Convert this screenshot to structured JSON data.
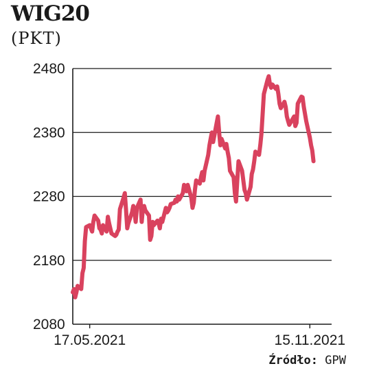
{
  "chart_data": {
    "type": "line",
    "title": "WIG20",
    "subtitle": "(PKT)",
    "source_label": "Źródło:",
    "source_value": "GPW",
    "line_color": "#d9425e",
    "ylim": [
      2080,
      2480
    ],
    "yticks": [
      {
        "label": "2480",
        "value": 2480
      },
      {
        "label": "2380",
        "value": 2380
      },
      {
        "label": "2280",
        "value": 2280
      },
      {
        "label": "2180",
        "value": 2180
      },
      {
        "label": "2080",
        "value": 2080
      }
    ],
    "xticks": [
      {
        "label": "17.05.2021",
        "value": "2021-05-17"
      },
      {
        "label": "15.11.2021",
        "value": "2021-11-15"
      }
    ],
    "xlim": [
      "2021-05-03",
      "2021-12-03"
    ],
    "grid": "horizontal",
    "series": [
      {
        "points": [
          [
            "2021-05-03",
            2130
          ],
          [
            "2021-05-04",
            2135
          ],
          [
            "2021-05-05",
            2122
          ],
          [
            "2021-05-06",
            2130
          ],
          [
            "2021-05-07",
            2140
          ],
          [
            "2021-05-10",
            2135
          ],
          [
            "2021-05-11",
            2160
          ],
          [
            "2021-05-12",
            2168
          ],
          [
            "2021-05-13",
            2210
          ],
          [
            "2021-05-14",
            2232
          ],
          [
            "2021-05-17",
            2235
          ],
          [
            "2021-05-18",
            2230
          ],
          [
            "2021-05-19",
            2225
          ],
          [
            "2021-05-20",
            2240
          ],
          [
            "2021-05-21",
            2250
          ],
          [
            "2021-05-24",
            2242
          ],
          [
            "2021-05-25",
            2230
          ],
          [
            "2021-05-26",
            2228
          ],
          [
            "2021-05-27",
            2222
          ],
          [
            "2021-05-28",
            2235
          ],
          [
            "2021-05-31",
            2225
          ],
          [
            "2021-06-01",
            2248
          ],
          [
            "2021-06-02",
            2238
          ],
          [
            "2021-06-04",
            2222
          ],
          [
            "2021-06-07",
            2218
          ],
          [
            "2021-06-08",
            2220
          ],
          [
            "2021-06-09",
            2225
          ],
          [
            "2021-06-10",
            2228
          ],
          [
            "2021-06-11",
            2260
          ],
          [
            "2021-06-14",
            2278
          ],
          [
            "2021-06-15",
            2285
          ],
          [
            "2021-06-16",
            2260
          ],
          [
            "2021-06-17",
            2230
          ],
          [
            "2021-06-18",
            2238
          ],
          [
            "2021-06-21",
            2255
          ],
          [
            "2021-06-22",
            2265
          ],
          [
            "2021-06-23",
            2258
          ],
          [
            "2021-06-24",
            2240
          ],
          [
            "2021-06-25",
            2262
          ],
          [
            "2021-06-28",
            2275
          ],
          [
            "2021-06-29",
            2240
          ],
          [
            "2021-06-30",
            2262
          ],
          [
            "2021-07-01",
            2265
          ],
          [
            "2021-07-02",
            2258
          ],
          [
            "2021-07-05",
            2250
          ],
          [
            "2021-07-06",
            2212
          ],
          [
            "2021-07-07",
            2218
          ],
          [
            "2021-07-08",
            2240
          ],
          [
            "2021-07-09",
            2235
          ],
          [
            "2021-07-12",
            2242
          ],
          [
            "2021-07-13",
            2238
          ],
          [
            "2021-07-14",
            2230
          ],
          [
            "2021-07-15",
            2245
          ],
          [
            "2021-07-16",
            2240
          ],
          [
            "2021-07-19",
            2262
          ],
          [
            "2021-07-20",
            2255
          ],
          [
            "2021-07-21",
            2258
          ],
          [
            "2021-07-22",
            2262
          ],
          [
            "2021-07-23",
            2268
          ],
          [
            "2021-07-26",
            2270
          ],
          [
            "2021-07-27",
            2275
          ],
          [
            "2021-07-28",
            2272
          ],
          [
            "2021-07-29",
            2280
          ],
          [
            "2021-07-30",
            2275
          ],
          [
            "2021-08-02",
            2285
          ],
          [
            "2021-08-03",
            2298
          ],
          [
            "2021-08-04",
            2295
          ],
          [
            "2021-08-05",
            2288
          ],
          [
            "2021-08-06",
            2298
          ],
          [
            "2021-08-09",
            2278
          ],
          [
            "2021-08-10",
            2262
          ],
          [
            "2021-08-11",
            2270
          ],
          [
            "2021-08-12",
            2290
          ],
          [
            "2021-08-13",
            2305
          ],
          [
            "2021-08-16",
            2300
          ],
          [
            "2021-08-17",
            2310
          ],
          [
            "2021-08-18",
            2318
          ],
          [
            "2021-08-19",
            2305
          ],
          [
            "2021-08-20",
            2320
          ],
          [
            "2021-08-23",
            2345
          ],
          [
            "2021-08-24",
            2360
          ],
          [
            "2021-08-25",
            2370
          ],
          [
            "2021-08-26",
            2380
          ],
          [
            "2021-08-27",
            2365
          ],
          [
            "2021-08-30",
            2395
          ],
          [
            "2021-08-31",
            2405
          ],
          [
            "2021-09-01",
            2380
          ],
          [
            "2021-09-02",
            2360
          ],
          [
            "2021-09-03",
            2370
          ],
          [
            "2021-09-06",
            2355
          ],
          [
            "2021-09-07",
            2362
          ],
          [
            "2021-09-08",
            2350
          ],
          [
            "2021-09-09",
            2340
          ],
          [
            "2021-09-10",
            2320
          ],
          [
            "2021-09-13",
            2310
          ],
          [
            "2021-09-14",
            2285
          ],
          [
            "2021-09-15",
            2272
          ],
          [
            "2021-09-16",
            2305
          ],
          [
            "2021-09-17",
            2335
          ],
          [
            "2021-09-20",
            2320
          ],
          [
            "2021-09-21",
            2305
          ],
          [
            "2021-09-22",
            2290
          ],
          [
            "2021-09-23",
            2285
          ],
          [
            "2021-09-24",
            2275
          ],
          [
            "2021-09-27",
            2295
          ],
          [
            "2021-09-28",
            2315
          ],
          [
            "2021-09-29",
            2322
          ],
          [
            "2021-09-30",
            2335
          ],
          [
            "2021-10-01",
            2350
          ],
          [
            "2021-10-04",
            2345
          ],
          [
            "2021-10-05",
            2360
          ],
          [
            "2021-10-06",
            2378
          ],
          [
            "2021-10-07",
            2410
          ],
          [
            "2021-10-08",
            2440
          ],
          [
            "2021-10-11",
            2462
          ],
          [
            "2021-10-12",
            2468
          ],
          [
            "2021-10-13",
            2455
          ],
          [
            "2021-10-14",
            2450
          ],
          [
            "2021-10-15",
            2455
          ],
          [
            "2021-10-18",
            2448
          ],
          [
            "2021-10-19",
            2452
          ],
          [
            "2021-10-20",
            2440
          ],
          [
            "2021-10-21",
            2425
          ],
          [
            "2021-10-22",
            2418
          ],
          [
            "2021-10-25",
            2428
          ],
          [
            "2021-10-26",
            2420
          ],
          [
            "2021-10-27",
            2405
          ],
          [
            "2021-10-28",
            2398
          ],
          [
            "2021-10-29",
            2392
          ],
          [
            "2021-11-02",
            2405
          ],
          [
            "2021-11-03",
            2390
          ],
          [
            "2021-11-04",
            2395
          ],
          [
            "2021-11-05",
            2425
          ],
          [
            "2021-11-08",
            2436
          ],
          [
            "2021-11-09",
            2435
          ],
          [
            "2021-11-10",
            2420
          ],
          [
            "2021-11-12",
            2398
          ],
          [
            "2021-11-15",
            2372
          ],
          [
            "2021-11-16",
            2360
          ],
          [
            "2021-11-17",
            2352
          ],
          [
            "2021-11-18",
            2335
          ]
        ]
      }
    ]
  }
}
